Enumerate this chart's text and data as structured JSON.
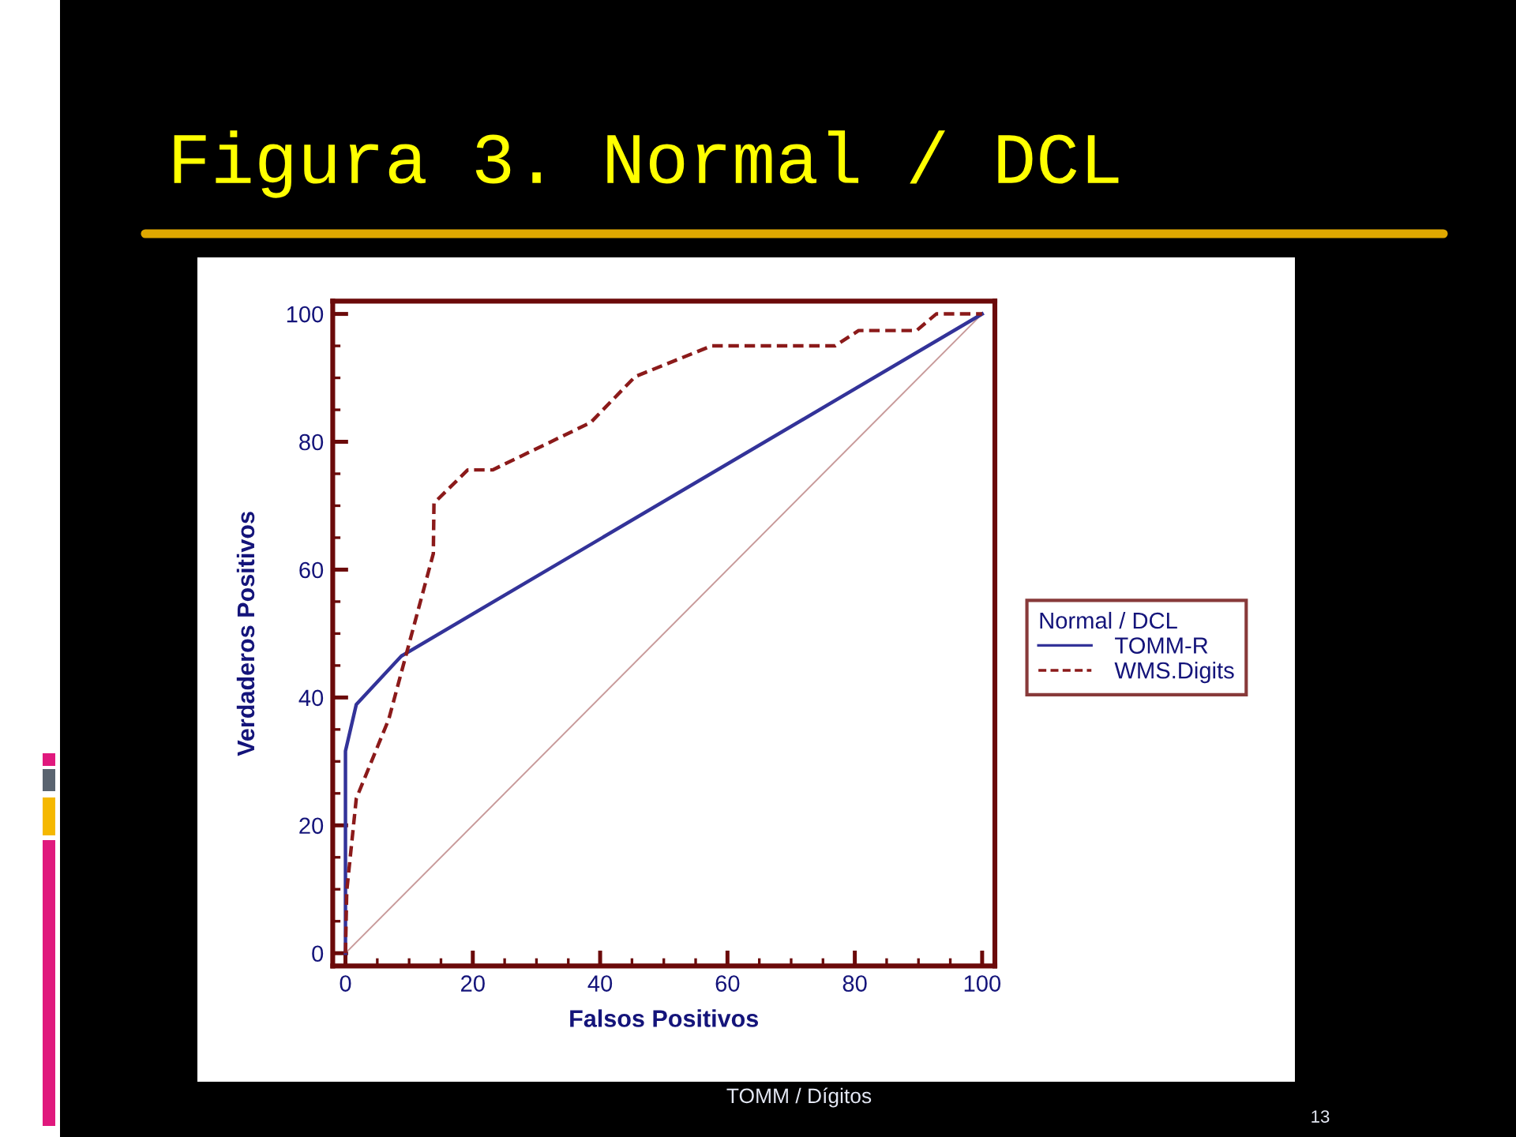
{
  "chart_data": {
    "type": "line",
    "title": "Figura 3. Normal / DCL",
    "xlabel": "Falsos Positivos",
    "ylabel": "Verdaderos Positivos",
    "legend_title": "Normal / DCL",
    "legend": "right",
    "xlim": [
      -2,
      102
    ],
    "ylim": [
      -2,
      102
    ],
    "xticks": [
      0,
      {
        "value": 5,
        "label": null
      },
      {
        "value": 10,
        "label": null
      },
      {
        "value": 15,
        "label": null
      },
      20,
      {
        "value": 25,
        "label": null
      },
      {
        "value": 30,
        "label": null
      },
      {
        "value": 35,
        "label": null
      },
      40,
      {
        "value": 45,
        "label": null
      },
      {
        "value": 50,
        "label": null
      },
      {
        "value": 55,
        "label": null
      },
      60,
      {
        "value": 65,
        "label": null
      },
      {
        "value": 70,
        "label": null
      },
      {
        "value": 75,
        "label": null
      },
      80,
      {
        "value": 85,
        "label": null
      },
      {
        "value": 90,
        "label": null
      },
      {
        "value": 95,
        "label": null
      },
      100
    ],
    "yticks": [
      0,
      {
        "value": 5,
        "label": null
      },
      {
        "value": 10,
        "label": null
      },
      {
        "value": 15,
        "label": null
      },
      20,
      {
        "value": 25,
        "label": null
      },
      {
        "value": 30,
        "label": null
      },
      {
        "value": 35,
        "label": null
      },
      40,
      {
        "value": 45,
        "label": null
      },
      {
        "value": 50,
        "label": null
      },
      {
        "value": 55,
        "label": null
      },
      60,
      {
        "value": 65,
        "label": null
      },
      {
        "value": 70,
        "label": null
      },
      {
        "value": 75,
        "label": null
      },
      80,
      {
        "value": 85,
        "label": null
      },
      {
        "value": 90,
        "label": null
      },
      {
        "value": 95,
        "label": null
      },
      100
    ],
    "annotations": [
      "TOMM / Dígitos",
      "13"
    ],
    "series": [
      {
        "name": "TOMM-R",
        "color": "#333399",
        "line_style": "solid",
        "x": [
          0,
          0,
          1.7,
          8.8,
          100
        ],
        "values": [
          0,
          31.6,
          38.9,
          46.5,
          100
        ]
      },
      {
        "name": "WMS.Digits",
        "color": "#8b1a1a",
        "line_style": "dashed",
        "x": [
          0,
          0.2,
          1.7,
          6.8,
          13.8,
          13.9,
          19.2,
          23.1,
          38.5,
          45.5,
          57.5,
          76.9,
          80.6,
          89.7,
          92.8,
          100
        ],
        "values": [
          0,
          9.7,
          24.2,
          36.6,
          62.5,
          70.4,
          75.6,
          75.6,
          83.0,
          90.2,
          95.0,
          95.0,
          97.4,
          97.4,
          100,
          100
        ]
      },
      {
        "color": "#c89a9a",
        "line_style": "solid",
        "x": [
          0,
          100
        ],
        "values": [
          0,
          100
        ]
      }
    ]
  }
}
